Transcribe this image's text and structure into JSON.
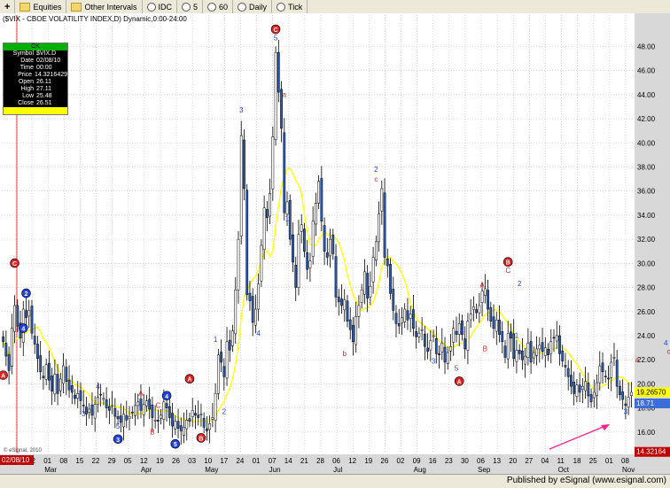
{
  "toolbar": {
    "items": [
      "Equities",
      "Other Intervals",
      "IDC",
      "5",
      "60",
      "Daily",
      "Tick"
    ],
    "plus": "+"
  },
  "chart_title": "($VIX - CBOE VOLATILITY INDEX,D) Dynamic,0:00-24:00",
  "data_panel": {
    "status": "OK",
    "rows": [
      {
        "k": "Symbol",
        "v": "$VIX.D"
      },
      {
        "k": "Date",
        "v": "02/08/10"
      },
      {
        "k": "Time",
        "v": "00:00"
      },
      {
        "k": "Price",
        "v": "14.3216429"
      },
      {
        "k": "Open",
        "v": "26.11"
      },
      {
        "k": "High",
        "v": "27.11"
      },
      {
        "k": "Low",
        "v": "25.48"
      },
      {
        "k": "Close",
        "v": "26.51"
      }
    ]
  },
  "watermark": "© eSignal, 2010",
  "published": "Published by eSignal (www.esignal.com)",
  "colors": {
    "background": "#ffffff",
    "grid": "#c0c0c0",
    "candle_up": "#ffffff",
    "candle_down": "#2c5bb5",
    "candle_outline": "#000000",
    "moving_average": "#ffff00",
    "label_blue": "#2040e0",
    "label_red": "#e02020",
    "cursor_line": "#ff0000",
    "arrow": "#ff1f8e",
    "current_price_box": "#ffff00",
    "cursor_price_box": "#c00000"
  },
  "chart_data": {
    "type": "candlestick",
    "y_axis": {
      "min": 14.3,
      "max": 50.6,
      "side": "right",
      "ticks": [
        "16.00",
        "18.00",
        "20.00",
        "22.00",
        "24.00",
        "26.00",
        "28.00",
        "30.00",
        "32.00",
        "34.00",
        "36.00",
        "38.00",
        "40.00",
        "42.00",
        "44.00",
        "46.00",
        "48.00"
      ]
    },
    "price_labels": {
      "current_top": "19.26570",
      "current_bottom": "18.71",
      "cursor": "14.32164"
    },
    "cursor_date": "02/08/10",
    "x_ticks": [
      "16",
      "22",
      "01",
      "08",
      "15",
      "22",
      "29",
      "05",
      "12",
      "19",
      "26",
      "03",
      "10",
      "17",
      "24",
      "01",
      "07",
      "14",
      "21",
      "28",
      "06",
      "12",
      "19",
      "26",
      "02",
      "09",
      "16",
      "23",
      "30",
      "06",
      "13",
      "20",
      "27",
      "04",
      "11",
      "18",
      "25",
      "01",
      "08"
    ],
    "months": [
      "Mar",
      "Apr",
      "May",
      "Jun",
      "Jul",
      "Aug",
      "Sep",
      "Oct",
      "Nov"
    ],
    "grid": true,
    "ohlc_close": [
      23.5,
      22.3,
      21.1,
      24.6,
      26.5,
      24.8,
      23.8,
      26.2,
      25.5,
      26.1,
      24.2,
      23.3,
      22.1,
      21.0,
      20.5,
      21.6,
      20.3,
      19.4,
      20.8,
      19.2,
      20.4,
      21.5,
      20.2,
      19.5,
      19.3,
      18.8,
      19.2,
      18.6,
      18.2,
      17.5,
      17.9,
      17.4,
      18.3,
      18.9,
      19.1,
      18.8,
      18.0,
      17.8,
      18.2,
      17.3,
      17.1,
      16.8,
      17.5,
      17.0,
      17.3,
      17.6,
      18.2,
      18.5,
      17.8,
      18.3,
      18.6,
      17.9,
      17.2,
      17.0,
      16.9,
      17.4,
      18.5,
      18.0,
      17.2,
      16.5,
      16.9,
      16.3,
      16.1,
      16.4,
      17.0,
      16.9,
      17.8,
      17.4,
      17.2,
      17.5,
      16.4,
      16.1,
      16.7,
      17.2,
      19.2,
      22.4,
      21.8,
      20.6,
      23.5,
      22.8,
      24.4,
      27.8,
      32.0,
      40.6,
      36.2,
      27.4,
      26.9,
      25.1,
      26.2,
      28.3,
      31.5,
      34.6,
      33.8,
      35.8,
      40.5,
      47.5,
      44.2,
      41.2,
      34.2,
      35.1,
      32.0,
      30.1,
      28.0,
      32.4,
      33.2,
      31.0,
      29.5,
      30.2,
      33.5,
      35.0,
      36.8,
      33.5,
      31.0,
      30.5,
      32.0,
      30.8,
      27.2,
      26.8,
      26.5,
      27.0,
      25.2,
      24.5,
      23.5,
      25.6,
      26.5,
      27.8,
      29.3,
      27.1,
      28.1,
      30.5,
      31.8,
      34.1,
      36.2,
      30.5,
      29.8,
      27.5,
      26.1,
      25.0,
      24.8,
      25.5,
      26.2,
      25.3,
      25.8,
      24.6,
      23.9,
      24.2,
      24.5,
      23.1,
      22.7,
      23.6,
      24.0,
      22.5,
      22.4,
      23.4,
      21.8,
      22.6,
      23.1,
      24.6,
      24.1,
      25.0,
      24.1,
      22.9,
      25.2,
      25.8,
      26.4,
      25.9,
      26.5,
      27.7,
      27.9,
      26.2,
      25.2,
      24.6,
      25.3,
      24.1,
      23.5,
      22.2,
      24.2,
      23.8,
      22.1,
      22.8,
      22.5,
      22.0,
      22.3,
      23.4,
      21.8,
      22.6,
      22.9,
      23.2,
      22.7,
      23.0,
      22.4,
      23.5,
      23.8,
      24.0,
      22.5,
      21.9,
      21.4,
      20.6,
      19.8,
      19.2,
      19.9,
      19.3,
      19.8,
      20.2,
      19.0,
      18.5,
      19.3,
      20.1,
      21.5,
      21.0,
      20.6,
      20.4,
      21.8,
      22.2,
      19.8,
      19.1,
      18.7,
      18.2,
      18.9,
      19.3
    ],
    "moving_average_note": "yellow smoothing line over closes",
    "wave_labels": [
      {
        "text": "C",
        "style": "red-circle",
        "i": 4,
        "price": 29.8
      },
      {
        "text": "2",
        "style": "blue-circle",
        "i": 8,
        "price": 27.3
      },
      {
        "text": "4",
        "style": "blue-circle",
        "i": 7,
        "price": 24.4
      },
      {
        "text": "A",
        "style": "red-circle",
        "i": 0,
        "price": 20.5
      },
      {
        "text": "4",
        "style": "blue",
        "i": 33,
        "price": 19.6
      },
      {
        "text": "3",
        "style": "blue",
        "i": 28,
        "price": 17.3
      },
      {
        "text": "5",
        "style": "blue",
        "i": 40,
        "price": 16.3
      },
      {
        "text": "3",
        "style": "blue-circle",
        "i": 40,
        "price": 15.2
      },
      {
        "text": "A",
        "style": "red",
        "i": 48,
        "price": 19.0
      },
      {
        "text": "C",
        "style": "red",
        "i": 54,
        "price": 18.0
      },
      {
        "text": "4",
        "style": "blue-circle",
        "i": 57,
        "price": 18.8
      },
      {
        "text": "B",
        "style": "red",
        "i": 52,
        "price": 15.8
      },
      {
        "text": "5",
        "style": "blue-circle",
        "i": 60,
        "price": 14.8
      },
      {
        "text": "A",
        "style": "red-circle",
        "i": 65,
        "price": 20.2
      },
      {
        "text": "B",
        "style": "red-circle",
        "i": 69,
        "price": 15.3
      },
      {
        "text": "1",
        "style": "blue",
        "i": 74,
        "price": 23.5
      },
      {
        "text": "2",
        "style": "blue",
        "i": 77,
        "price": 17.5
      },
      {
        "text": "3",
        "style": "blue",
        "i": 83,
        "price": 42.5
      },
      {
        "text": "4",
        "style": "blue",
        "i": 89,
        "price": 24.0
      },
      {
        "text": "C",
        "style": "red-circle",
        "i": 95,
        "price": 49.2
      },
      {
        "text": "5",
        "style": "blue",
        "i": 95,
        "price": 48.5
      },
      {
        "text": "a",
        "style": "red",
        "i": 98,
        "price": 43.8
      },
      {
        "text": "1",
        "style": "blue",
        "i": 99,
        "price": 33.5
      },
      {
        "text": "b",
        "style": "red",
        "i": 119,
        "price": 22.3
      },
      {
        "text": "2",
        "style": "blue",
        "i": 130,
        "price": 37.6
      },
      {
        "text": "c",
        "style": "red",
        "i": 130,
        "price": 36.8
      },
      {
        "text": "3",
        "style": "blue",
        "i": 150,
        "price": 21.7
      },
      {
        "text": "4",
        "style": "blue",
        "i": 160,
        "price": 24.2
      },
      {
        "text": "5",
        "style": "blue",
        "i": 158,
        "price": 21.1
      },
      {
        "text": "A",
        "style": "red-circle",
        "i": 159,
        "price": 20.0
      },
      {
        "text": "A",
        "style": "red",
        "i": 167,
        "price": 28.0
      },
      {
        "text": "B",
        "style": "red",
        "i": 168,
        "price": 22.7
      },
      {
        "text": "B",
        "style": "red-circle",
        "i": 176,
        "price": 29.9
      },
      {
        "text": "C",
        "style": "red",
        "i": 176,
        "price": 29.2
      },
      {
        "text": "2",
        "style": "blue",
        "i": 180,
        "price": 28.1
      },
      {
        "text": "1",
        "style": "blue",
        "i": 179,
        "price": 23.8
      },
      {
        "text": "3",
        "style": "blue",
        "i": 217,
        "price": 17.5
      },
      {
        "text": "a",
        "style": "red",
        "i": 221,
        "price": 21.8
      },
      {
        "text": "b",
        "style": "red",
        "i": 226,
        "price": 18.1
      },
      {
        "text": "4",
        "style": "blue",
        "i": 231,
        "price": 23.2
      },
      {
        "text": "c",
        "style": "red",
        "i": 232,
        "price": 22.5
      },
      {
        "text": "5",
        "style": "blue",
        "i": 240,
        "price": 17.4
      },
      {
        "text": "C",
        "style": "red-circle",
        "i": 240,
        "price": 16.7
      }
    ]
  }
}
